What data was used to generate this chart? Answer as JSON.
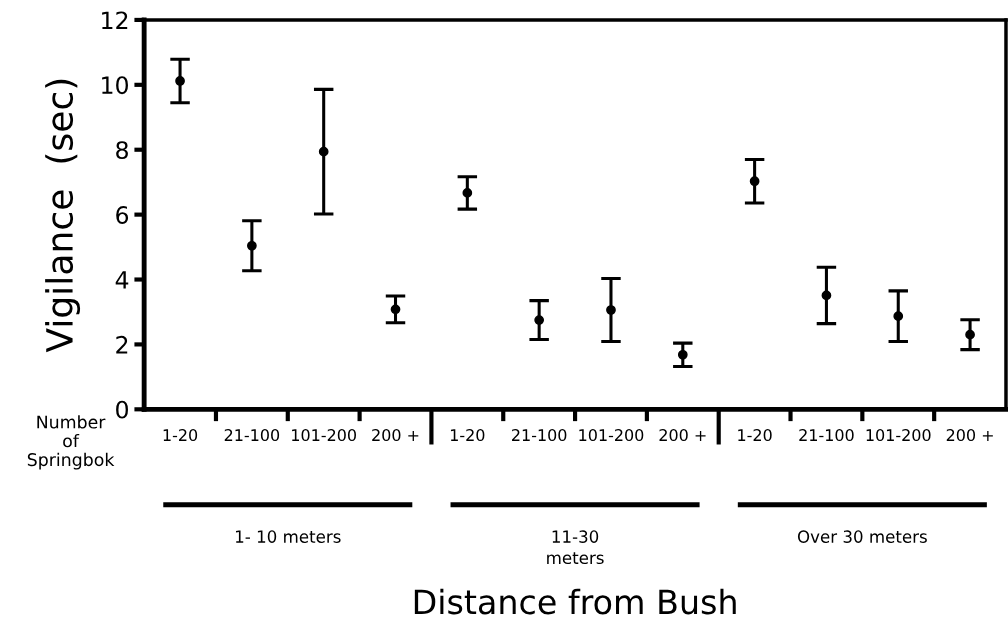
{
  "chart_data": {
    "type": "scatter",
    "xlabel": "Distance from Bush",
    "ylabel": "Vigilance  (sec)",
    "categories": [
      "1-20",
      "21-100",
      "101-200",
      "200 +",
      "1-20",
      "21-100",
      "101-200",
      "200 +",
      "1-20",
      "21-100",
      "101-200",
      "200 +"
    ],
    "values": [
      10.12,
      5.04,
      7.94,
      3.08,
      6.67,
      2.75,
      3.06,
      1.68,
      7.03,
      3.51,
      2.87,
      2.3
    ],
    "errors": [
      0.67,
      0.77,
      1.92,
      0.41,
      0.5,
      0.6,
      0.97,
      0.36,
      0.67,
      0.87,
      0.78,
      0.46
    ],
    "color": "#000000",
    "marker": "circle",
    "ylim": [
      0,
      12
    ],
    "yticks": [
      0,
      2,
      4,
      6,
      8,
      10,
      12
    ],
    "grid": false,
    "legend": false,
    "annotations": [
      "Number\nof\nSpringbok",
      "1- 10 meters",
      "11-30\nmeters",
      "Over 30 meters"
    ]
  }
}
